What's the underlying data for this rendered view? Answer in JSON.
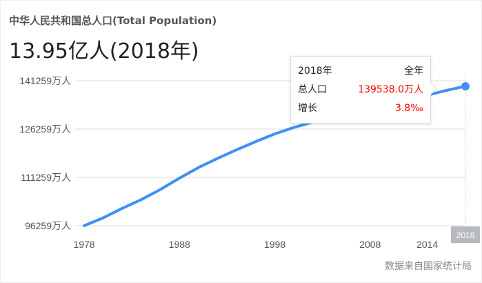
{
  "header": {
    "title": "中华人民共和国总人口(Total Population)",
    "headline": "13.95亿人(2018年)"
  },
  "tooltip": {
    "year": "2018年",
    "period": "全年",
    "population_label": "总人口",
    "population_value": "139538.0万人",
    "growth_label": "增长",
    "growth_value": "3.8‰"
  },
  "source": "数据来自国家统计局",
  "colors": {
    "line": "#3f8ff5",
    "tooltip_value": "#ff0000",
    "highlight_label_bg": "#b6b9c1"
  },
  "chart_data": {
    "type": "line",
    "x": [
      1978,
      1980,
      1982,
      1984,
      1986,
      1988,
      1990,
      1992,
      1994,
      1996,
      1998,
      2000,
      2002,
      2004,
      2006,
      2008,
      2010,
      2012,
      2014,
      2016,
      2018
    ],
    "values": [
      96259,
      98705,
      101654,
      104357,
      107507,
      111026,
      114333,
      117171,
      119850,
      122389,
      124761,
      126743,
      128453,
      129988,
      131448,
      132802,
      134091,
      135404,
      136782,
      138271,
      139538
    ],
    "xlim": [
      1978,
      2018
    ],
    "ylim": [
      96259,
      141259
    ],
    "yticks": [
      96259,
      111259,
      126259,
      141259
    ],
    "ytick_labels": [
      "96259万人",
      "111259万人",
      "126259万人",
      "141259万人"
    ],
    "xticks": [
      1978,
      1988,
      1998,
      2008,
      2014
    ],
    "xtick_labels": [
      "1978",
      "1988",
      "1998",
      "2008",
      "2014"
    ],
    "highlight_x_label": "2018",
    "grid": true
  }
}
